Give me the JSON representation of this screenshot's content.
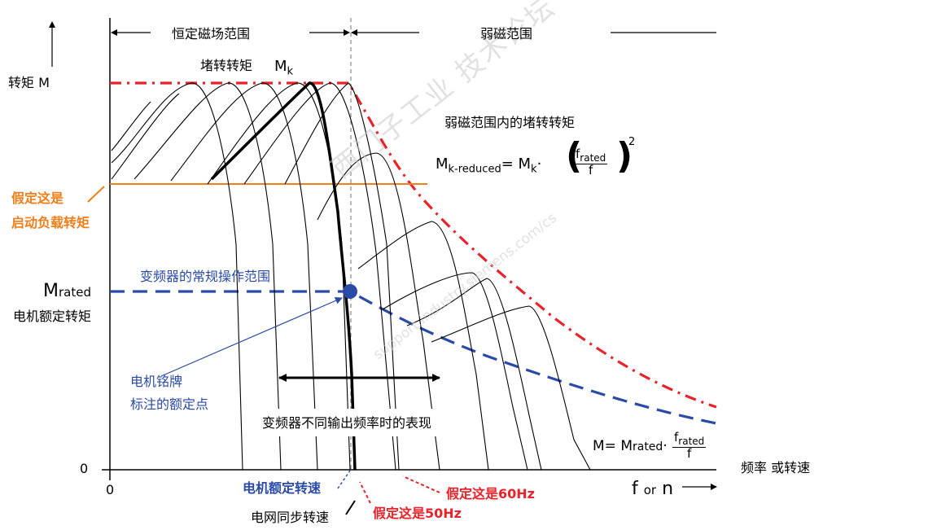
{
  "diagram": {
    "title_axis_y": "转矩 M",
    "label_const_flux": "恒定磁场范围",
    "label_field_weakening": "弱磁范围",
    "label_stall_torque": "堵转转矩",
    "label_mk": "M",
    "label_mk_sub": "k",
    "label_fw_stall": "弱磁范围内的堵转转矩",
    "formula_mk_reduced_left": "M",
    "formula_mk_reduced_sub": "k-reduced",
    "formula_eq": "= M",
    "formula_k_sub": "k",
    "formula_dot": "·",
    "formula_frac_num": "f",
    "formula_frac_num_sub": "rated",
    "formula_frac_den": "f",
    "formula_exp": "2",
    "label_assume_start_1": "假定这是",
    "label_assume_start_2": "启动负载转矩",
    "label_vfd_range": "变频器的常规操作范围",
    "label_m_rated": "M",
    "label_m_rated_sub": "rated",
    "label_motor_rated_torque": "电机额定转矩",
    "label_nameplate_1": "电机铭牌",
    "label_nameplate_2": "标注的额定点",
    "label_vfd_freq": "变频器不同输出频率时的表现",
    "formula2_m": "M= M",
    "formula2_sub": "rated",
    "formula2_dot": "·",
    "formula2_num": "f",
    "formula2_num_sub": "rated",
    "formula2_den": "f",
    "label_zero_y": "0",
    "label_zero_x": "0",
    "label_freq_speed": "频率 或转速",
    "label_f_or_n_f": "f",
    "label_f_or_n_or": "or",
    "label_f_or_n_n": "n",
    "label_rated_speed": "电机额定转速",
    "label_sync_speed": "电网同步转速",
    "label_assume_50": "假定这是50Hz",
    "label_assume_60": "假定这是60Hz",
    "watermark_main": "西门子工业 技术论坛",
    "watermark_url": "support.industry.siemens.com/cs",
    "colors": {
      "red": "#e8232a",
      "blue": "#2a4aa8",
      "orange": "#ef7f1a",
      "black": "#000000",
      "grid_dash": "#888888"
    }
  }
}
